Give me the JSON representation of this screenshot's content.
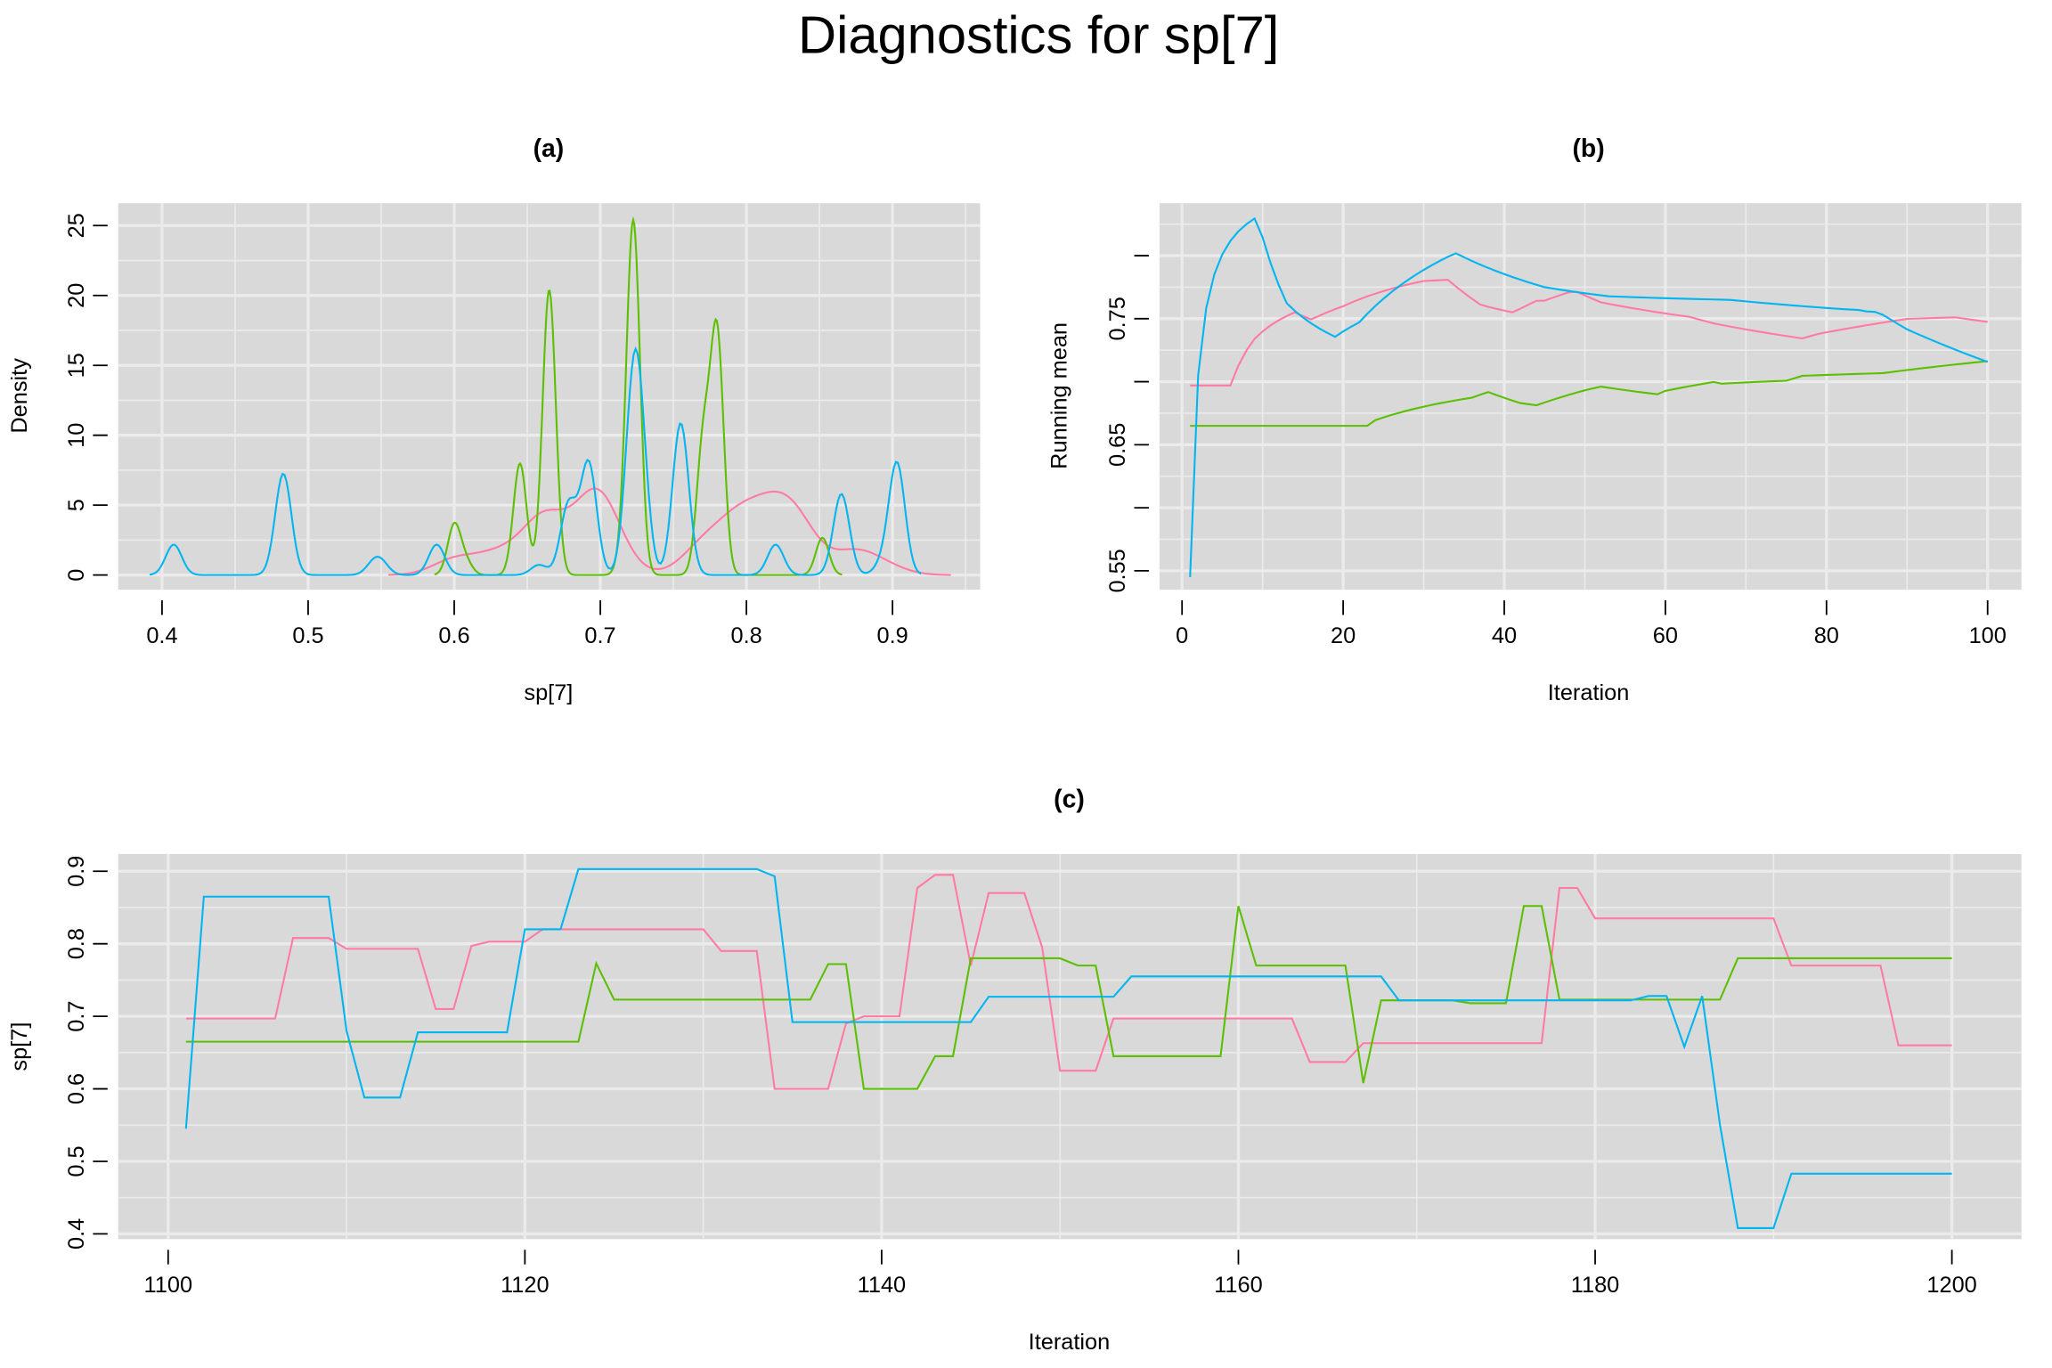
{
  "title": "Diagnostics for sp[7]",
  "colors": {
    "chain1": "#FF7BA3",
    "chain2": "#5CBF00",
    "chain3": "#00B5F0",
    "panel_bg": "#D9D9D9",
    "grid": "#EBEBEB"
  },
  "trace": {
    "iterations_start": 1101,
    "chain1": [
      0.697,
      0.697,
      0.697,
      0.697,
      0.697,
      0.697,
      0.808,
      0.808,
      0.808,
      0.793,
      0.793,
      0.793,
      0.793,
      0.793,
      0.71,
      0.71,
      0.797,
      0.803,
      0.803,
      0.803,
      0.82,
      0.82,
      0.82,
      0.82,
      0.82,
      0.82,
      0.82,
      0.82,
      0.82,
      0.82,
      0.79,
      0.79,
      0.79,
      0.6,
      0.6,
      0.6,
      0.6,
      0.69,
      0.7,
      0.7,
      0.7,
      0.877,
      0.895,
      0.895,
      0.77,
      0.87,
      0.87,
      0.87,
      0.795,
      0.625,
      0.625,
      0.625,
      0.697,
      0.697,
      0.697,
      0.697,
      0.697,
      0.697,
      0.697,
      0.697,
      0.697,
      0.697,
      0.697,
      0.637,
      0.637,
      0.637,
      0.663,
      0.663,
      0.663,
      0.663,
      0.663,
      0.663,
      0.663,
      0.663,
      0.663,
      0.663,
      0.663,
      0.877,
      0.877,
      0.835,
      0.835,
      0.835,
      0.835,
      0.835,
      0.835,
      0.835,
      0.835,
      0.835,
      0.835,
      0.835,
      0.77,
      0.77,
      0.77,
      0.77,
      0.77,
      0.77,
      0.66,
      0.66,
      0.66,
      0.66
    ],
    "chain2": [
      0.665,
      0.665,
      0.665,
      0.665,
      0.665,
      0.665,
      0.665,
      0.665,
      0.665,
      0.665,
      0.665,
      0.665,
      0.665,
      0.665,
      0.665,
      0.665,
      0.665,
      0.665,
      0.665,
      0.665,
      0.665,
      0.665,
      0.665,
      0.773,
      0.723,
      0.723,
      0.723,
      0.723,
      0.723,
      0.723,
      0.723,
      0.723,
      0.723,
      0.723,
      0.723,
      0.723,
      0.772,
      0.772,
      0.6,
      0.6,
      0.6,
      0.6,
      0.645,
      0.645,
      0.78,
      0.78,
      0.78,
      0.78,
      0.78,
      0.78,
      0.77,
      0.77,
      0.645,
      0.645,
      0.645,
      0.645,
      0.645,
      0.645,
      0.645,
      0.852,
      0.77,
      0.77,
      0.77,
      0.77,
      0.77,
      0.77,
      0.608,
      0.722,
      0.722,
      0.722,
      0.722,
      0.722,
      0.718,
      0.718,
      0.718,
      0.852,
      0.852,
      0.723,
      0.723,
      0.723,
      0.723,
      0.723,
      0.723,
      0.723,
      0.723,
      0.723,
      0.723,
      0.78,
      0.78,
      0.78,
      0.78,
      0.78,
      0.78,
      0.78,
      0.78,
      0.78,
      0.78,
      0.78,
      0.78,
      0.78
    ],
    "chain3": [
      0.545,
      0.865,
      0.865,
      0.865,
      0.865,
      0.865,
      0.865,
      0.865,
      0.865,
      0.68,
      0.588,
      0.588,
      0.588,
      0.678,
      0.678,
      0.678,
      0.678,
      0.678,
      0.678,
      0.82,
      0.82,
      0.82,
      0.903,
      0.903,
      0.903,
      0.903,
      0.903,
      0.903,
      0.903,
      0.903,
      0.903,
      0.903,
      0.903,
      0.893,
      0.692,
      0.692,
      0.692,
      0.692,
      0.692,
      0.692,
      0.692,
      0.692,
      0.692,
      0.692,
      0.692,
      0.727,
      0.727,
      0.727,
      0.727,
      0.727,
      0.727,
      0.727,
      0.727,
      0.755,
      0.755,
      0.755,
      0.755,
      0.755,
      0.755,
      0.755,
      0.755,
      0.755,
      0.755,
      0.755,
      0.755,
      0.755,
      0.755,
      0.755,
      0.722,
      0.722,
      0.722,
      0.722,
      0.722,
      0.722,
      0.722,
      0.722,
      0.722,
      0.722,
      0.722,
      0.722,
      0.722,
      0.722,
      0.728,
      0.728,
      0.658,
      0.728,
      0.55,
      0.408,
      0.408,
      0.408,
      0.483,
      0.483,
      0.483,
      0.483,
      0.483,
      0.483,
      0.483,
      0.483,
      0.483,
      0.483
    ]
  },
  "chart_data": [
    {
      "panel": "(a)",
      "type": "line",
      "subtype": "kernel density of each chain",
      "xlabel": "sp[7]",
      "ylabel": "Density",
      "xlim": [
        0.37,
        0.96
      ],
      "ylim": [
        -1.05,
        26.6
      ],
      "xticks": [
        0.4,
        0.5,
        0.6,
        0.7,
        0.8,
        0.9
      ],
      "xtick_labels": [
        "0.4",
        "0.5",
        "0.6",
        "0.7",
        "0.8",
        "0.9"
      ],
      "yticks": [
        0,
        5,
        10,
        15,
        20,
        25
      ],
      "ytick_labels": [
        "0",
        "5",
        "10",
        "15",
        "20",
        "25"
      ],
      "bandwidth": {
        "chain1": 0.015,
        "chain2": 0.0045,
        "chain3": 0.0055
      },
      "grid": true
    },
    {
      "panel": "(b)",
      "type": "line",
      "subtype": "running mean of each chain",
      "xlabel": "Iteration",
      "ylabel": "Running mean",
      "xlim": [
        -2.8,
        104.2
      ],
      "ylim": [
        0.535,
        0.8416
      ],
      "xticks": [
        0,
        20,
        40,
        60,
        80,
        100
      ],
      "xtick_labels": [
        "0",
        "20",
        "40",
        "60",
        "80",
        "100"
      ],
      "yticks": [
        0.55,
        0.6,
        0.65,
        0.7,
        0.75,
        0.8
      ],
      "ytick_labels": [
        "0.55",
        "",
        "0.65",
        "",
        "0.75",
        ""
      ],
      "grid": true
    },
    {
      "panel": "(c)",
      "type": "line",
      "subtype": "trace of each chain",
      "xlabel": "Iteration",
      "ylabel": "sp[7]",
      "xlim": [
        1097.2,
        1203.9
      ],
      "ylim": [
        0.3927,
        0.9238
      ],
      "xticks": [
        1100,
        1120,
        1140,
        1160,
        1180,
        1200
      ],
      "xtick_labels": [
        "1100",
        "1120",
        "1140",
        "1160",
        "1180",
        "1200"
      ],
      "yticks": [
        0.4,
        0.5,
        0.6,
        0.7,
        0.8,
        0.9
      ],
      "ytick_labels": [
        "0.4",
        "0.5",
        "0.6",
        "0.7",
        "0.8",
        "0.9"
      ],
      "grid": true
    }
  ]
}
